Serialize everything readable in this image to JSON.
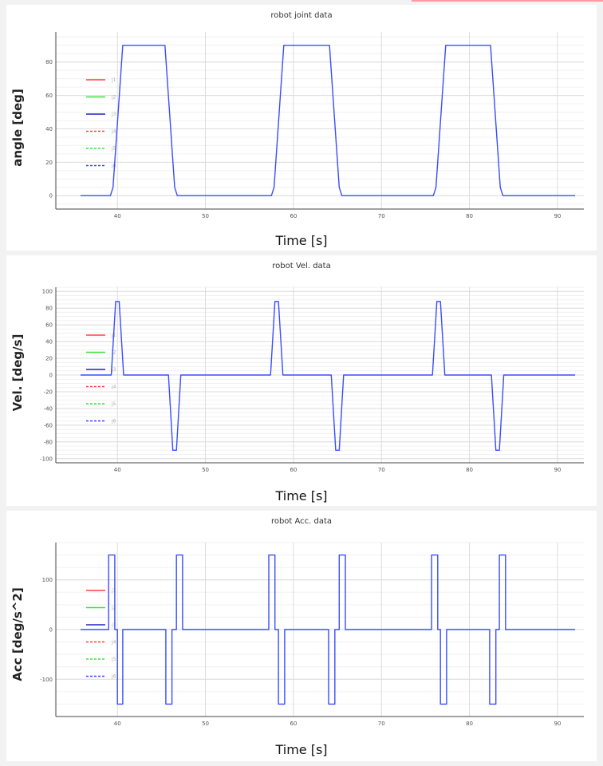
{
  "colors": {
    "s1": "#ff4040",
    "s2": "#40e040",
    "s3": "#2020c0",
    "s4": "#ff4040",
    "s5": "#40e040",
    "s6": "#4040ff",
    "trace": "#3a4cff"
  },
  "chart_data": [
    {
      "type": "line",
      "title": "robot joint data",
      "xlabel": "Time [s]",
      "ylabel": "angle [deg]",
      "xlim": [
        33,
        93
      ],
      "ylim": [
        -8,
        98
      ],
      "xticks": [
        40,
        50,
        60,
        70,
        80,
        90
      ],
      "yticks": [
        0,
        20,
        40,
        60,
        80
      ],
      "legend": {
        "placement": "left",
        "labels": [
          "j1",
          "j2",
          "j3",
          "j4",
          "j5",
          "j6"
        ]
      },
      "series": [
        {
          "x": [
            35.8,
            39.2,
            39.5,
            40.6,
            45.4,
            46.5,
            46.8,
            57.5,
            57.8,
            58.9,
            64.1,
            65.2,
            65.5,
            75.9,
            76.2,
            77.3,
            82.4,
            83.5,
            83.8,
            92
          ],
          "y": [
            0,
            0,
            5,
            90,
            90,
            5,
            0,
            0,
            5,
            90,
            90,
            5,
            0,
            0,
            5,
            90,
            90,
            5,
            0,
            0
          ]
        }
      ]
    },
    {
      "type": "line",
      "title": "robot Vel. data",
      "xlabel": "Time [s]",
      "ylabel": "Vel. [deg/s]",
      "xlim": [
        33,
        93
      ],
      "ylim": [
        -105,
        105
      ],
      "xticks": [
        40,
        50,
        60,
        70,
        80,
        90
      ],
      "yticks": [
        -100,
        -80,
        -60,
        -40,
        -20,
        0,
        20,
        40,
        60,
        80,
        100
      ],
      "legend": {
        "placement": "left",
        "labels": [
          "j1",
          "j2",
          "j3",
          "j4",
          "j5",
          "j6"
        ]
      },
      "series": [
        {
          "x": [
            35.8,
            39.3,
            39.8,
            40.2,
            40.7,
            45.8,
            46.3,
            46.7,
            47.2,
            57.4,
            57.9,
            58.3,
            58.8,
            64.3,
            64.8,
            65.2,
            65.7,
            75.8,
            76.3,
            76.7,
            77.2,
            82.5,
            83.0,
            83.4,
            83.9,
            92
          ],
          "y": [
            0,
            0,
            88,
            88,
            0,
            0,
            -90,
            -90,
            0,
            0,
            88,
            88,
            0,
            0,
            -90,
            -90,
            0,
            0,
            88,
            88,
            0,
            0,
            -90,
            -90,
            0,
            0
          ]
        }
      ]
    },
    {
      "type": "line",
      "title": "robot Acc. data",
      "xlabel": "Time [s]",
      "ylabel": "Acc [deg/s^2]",
      "xlim": [
        33,
        93
      ],
      "ylim": [
        -175,
        175
      ],
      "xticks": [
        40,
        50,
        60,
        70,
        80,
        90
      ],
      "yticks": [
        -100,
        0,
        100
      ],
      "legend": {
        "placement": "left",
        "labels": [
          "j1",
          "j2",
          "j3",
          "j4",
          "j5",
          "j6"
        ]
      },
      "series": [
        {
          "x": [
            35.8,
            39.0,
            39.0,
            39.7,
            39.7,
            40.0,
            40.0,
            40.6,
            40.6,
            45.5,
            45.5,
            46.2,
            46.2,
            46.7,
            46.7,
            47.4,
            47.4,
            57.2,
            57.2,
            57.9,
            57.9,
            58.3,
            58.3,
            59.0,
            59.0,
            64.0,
            64.0,
            64.7,
            64.7,
            65.2,
            65.2,
            65.9,
            65.9,
            75.7,
            75.7,
            76.4,
            76.4,
            76.7,
            76.7,
            77.4,
            77.4,
            82.3,
            82.3,
            83.0,
            83.0,
            83.4,
            83.4,
            84.1,
            84.1,
            92
          ],
          "y": [
            0,
            0,
            150,
            150,
            0,
            0,
            -150,
            -150,
            0,
            0,
            -150,
            -150,
            0,
            0,
            150,
            150,
            0,
            0,
            150,
            150,
            0,
            0,
            -150,
            -150,
            0,
            0,
            -150,
            -150,
            0,
            0,
            150,
            150,
            0,
            0,
            150,
            150,
            0,
            0,
            -150,
            -150,
            0,
            0,
            -150,
            -150,
            0,
            0,
            150,
            150,
            0,
            0
          ]
        }
      ]
    }
  ]
}
